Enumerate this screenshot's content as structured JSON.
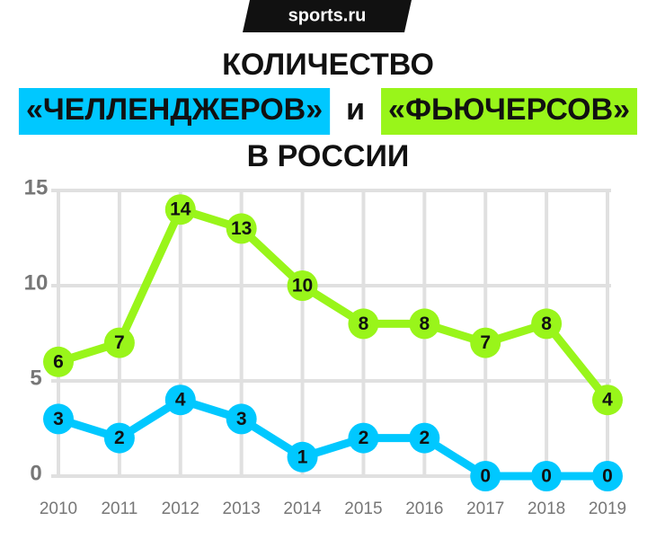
{
  "logo": "sports.ru",
  "chart_data": {
    "type": "line",
    "title": "КОЛИЧЕСТВО",
    "title_connector": "и",
    "title_end": "В РОССИИ",
    "categories": [
      "2010",
      "2011",
      "2012",
      "2013",
      "2014",
      "2015",
      "2016",
      "2017",
      "2018",
      "2019"
    ],
    "series": [
      {
        "name": "«ЧЕЛЛЕНДЖЕРОВ»",
        "color": "#00c8ff",
        "values": [
          3,
          2,
          4,
          3,
          1,
          2,
          2,
          0,
          0,
          0
        ]
      },
      {
        "name": "«ФЬЮЧЕРСОВ»",
        "color": "#99f51a",
        "values": [
          6,
          7,
          14,
          13,
          10,
          8,
          8,
          7,
          8,
          4
        ]
      }
    ],
    "ylim": [
      0,
      15
    ],
    "yticks": [
      0,
      5,
      10,
      15
    ],
    "grid": true
  }
}
